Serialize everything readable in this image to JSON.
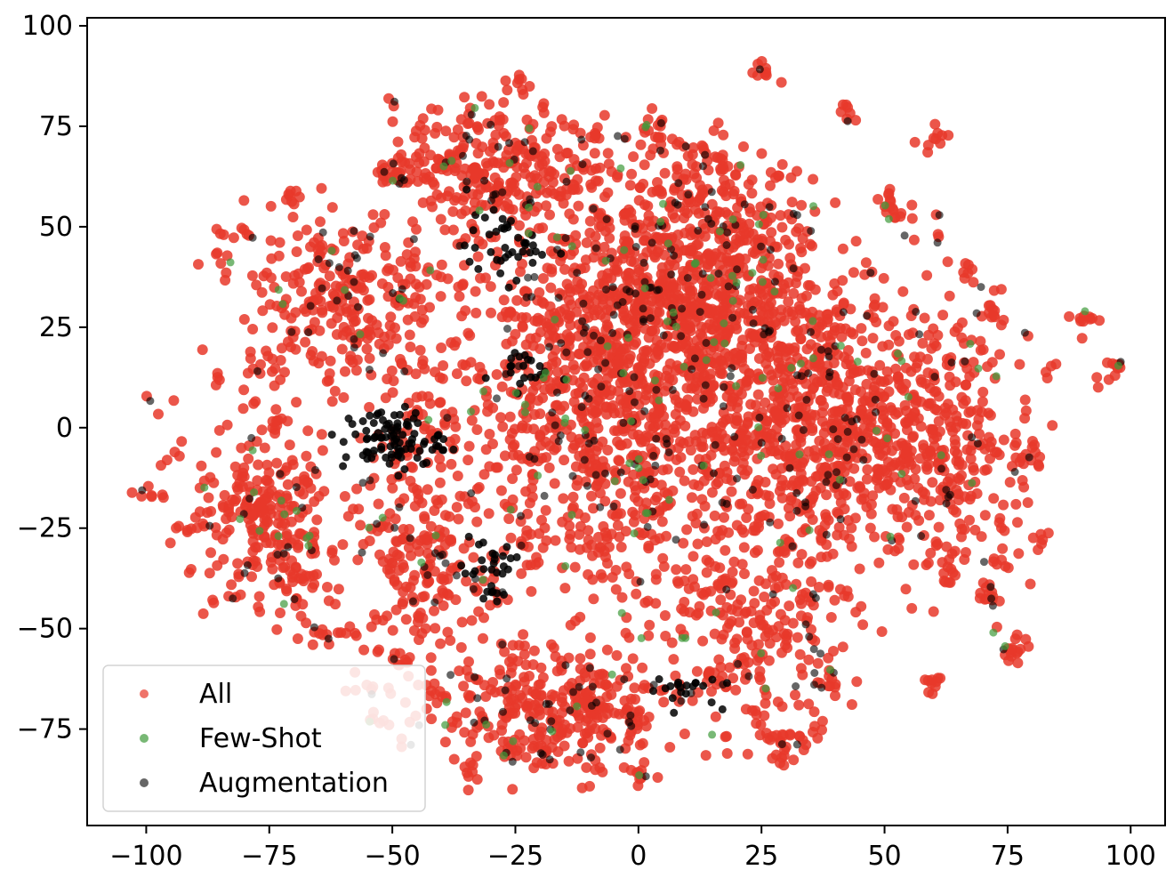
{
  "chart_data": {
    "type": "scatter",
    "title": "",
    "xlabel": "",
    "ylabel": "",
    "xlim": [
      -112,
      107
    ],
    "ylim": [
      -99,
      102
    ],
    "x_ticks": [
      -100,
      -75,
      -50,
      -25,
      0,
      25,
      50,
      75,
      100
    ],
    "y_ticks": [
      100,
      75,
      50,
      25,
      0,
      -25,
      -50,
      -75
    ],
    "x_tick_labels": [
      "−100",
      "−75",
      "−50",
      "−25",
      "0",
      "25",
      "50",
      "75",
      "100"
    ],
    "y_tick_labels": [
      "100",
      "75",
      "50",
      "25",
      "0",
      "−25",
      "−50",
      "−75"
    ],
    "grid": false,
    "legend_position": "lower-left",
    "series": [
      {
        "name": "All",
        "color": "#e8382a",
        "count_approx": 4000,
        "note_clusters": [
          {
            "cx": -5,
            "cy": 5,
            "sx": 20,
            "sy": 28,
            "n": 1200
          },
          {
            "cx": 40,
            "cy": 0,
            "sx": 14,
            "sy": 18,
            "n": 700
          },
          {
            "cx": 10,
            "cy": 45,
            "sx": 12,
            "sy": 15,
            "n": 400
          },
          {
            "cx": -30,
            "cy": 65,
            "sx": 10,
            "sy": 8,
            "n": 250
          },
          {
            "cx": -60,
            "cy": 30,
            "sx": 10,
            "sy": 12,
            "n": 250
          },
          {
            "cx": -75,
            "cy": -25,
            "sx": 8,
            "sy": 12,
            "n": 220
          },
          {
            "cx": -45,
            "cy": -30,
            "sx": 6,
            "sy": 18,
            "n": 200
          },
          {
            "cx": -15,
            "cy": -70,
            "sx": 12,
            "sy": 8,
            "n": 250
          },
          {
            "cx": 25,
            "cy": -55,
            "sx": 8,
            "sy": 12,
            "n": 180
          },
          {
            "cx": 65,
            "cy": -5,
            "sx": 8,
            "sy": 15,
            "n": 180
          },
          {
            "cx": 10,
            "cy": 25,
            "sx": 15,
            "sy": 12,
            "n": 300
          }
        ]
      },
      {
        "name": "Few-Shot",
        "color": "#3f9a3a",
        "count_approx": 150
      },
      {
        "name": "Augmentation",
        "color": "#000000",
        "count_approx": 600
      }
    ],
    "legend": [
      "All",
      "Few-Shot",
      "Augmentation"
    ]
  }
}
